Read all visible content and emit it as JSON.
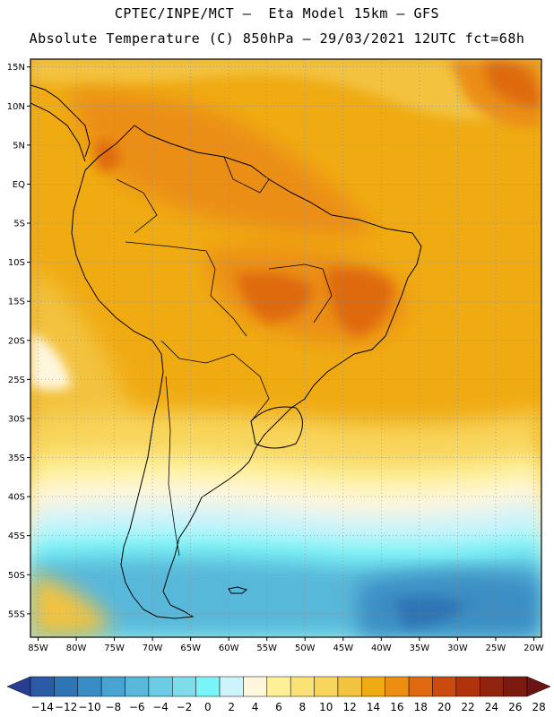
{
  "header": {
    "line1": "CPTEC/INPE/MCT –  Eta Model 15km – GFS",
    "line2": "Absolute Temperature (C) 850hPa – 29/03/2021 12UTC fct=68h"
  },
  "map": {
    "lon_range": [
      -86,
      -19
    ],
    "lat_range": [
      -58,
      16
    ],
    "lat_ticks": [
      {
        "value": 15,
        "label": "15N"
      },
      {
        "value": 10,
        "label": "10N"
      },
      {
        "value": 5,
        "label": "5N"
      },
      {
        "value": 0,
        "label": "EQ"
      },
      {
        "value": -5,
        "label": "5S"
      },
      {
        "value": -10,
        "label": "10S"
      },
      {
        "value": -15,
        "label": "15S"
      },
      {
        "value": -20,
        "label": "20S"
      },
      {
        "value": -25,
        "label": "25S"
      },
      {
        "value": -30,
        "label": "30S"
      },
      {
        "value": -35,
        "label": "35S"
      },
      {
        "value": -40,
        "label": "40S"
      },
      {
        "value": -45,
        "label": "45S"
      },
      {
        "value": -50,
        "label": "50S"
      },
      {
        "value": -55,
        "label": "55S"
      }
    ],
    "lon_ticks": [
      {
        "value": -85,
        "label": "85W"
      },
      {
        "value": -80,
        "label": "80W"
      },
      {
        "value": -75,
        "label": "75W"
      },
      {
        "value": -70,
        "label": "70W"
      },
      {
        "value": -65,
        "label": "65W"
      },
      {
        "value": -60,
        "label": "60W"
      },
      {
        "value": -55,
        "label": "55W"
      },
      {
        "value": -50,
        "label": "50W"
      },
      {
        "value": -45,
        "label": "45W"
      },
      {
        "value": -40,
        "label": "40W"
      },
      {
        "value": -35,
        "label": "35W"
      },
      {
        "value": -30,
        "label": "30W"
      },
      {
        "value": -25,
        "label": "25W"
      },
      {
        "value": -20,
        "label": "20W"
      }
    ]
  },
  "colorbar": {
    "labels": [
      "−14",
      "−12",
      "−10",
      "−8",
      "−6",
      "−4",
      "−2",
      "0",
      "2",
      "4",
      "6",
      "8",
      "10",
      "12",
      "14",
      "16",
      "18",
      "20",
      "22",
      "24",
      "26",
      "28"
    ],
    "colors": [
      "#283d8f",
      "#2b5aa6",
      "#2f74b5",
      "#3a8dc3",
      "#47a3cf",
      "#58b8d9",
      "#6acbe2",
      "#7fdcea",
      "#7af5f7",
      "#cdf3fb",
      "#fff6de",
      "#fdf097",
      "#fbe277",
      "#f8d55c",
      "#f3c340",
      "#f0ab13",
      "#eb8e12",
      "#df6a10",
      "#cb4a0d",
      "#b1330d",
      "#90240f",
      "#7a1a10",
      "#6a1414"
    ]
  }
}
